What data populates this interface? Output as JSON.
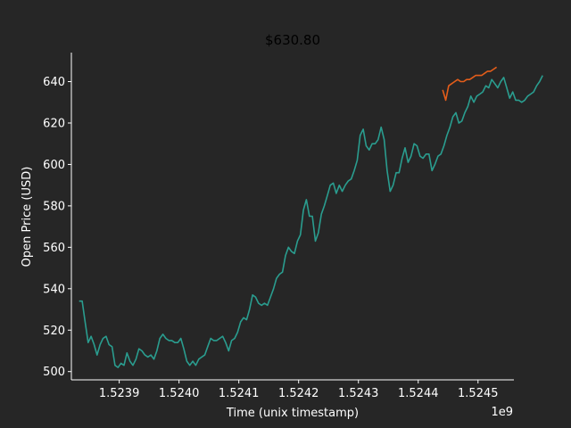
{
  "chart_data": {
    "type": "line",
    "title": "$630.80",
    "xlabel": "Time (unix timestamp)",
    "ylabel": "Open Price (USD)",
    "x_offset_label": "1e9",
    "xlim": [
      1.52382,
      1.52456
    ],
    "ylim": [
      496,
      654
    ],
    "x_ticks": [
      1.5239,
      1.524,
      1.5241,
      1.5242,
      1.5243,
      1.5244,
      1.5245
    ],
    "x_tick_labels": [
      "1.5239",
      "1.5240",
      "1.5241",
      "1.5242",
      "1.5243",
      "1.5244",
      "1.5245"
    ],
    "y_ticks": [
      500,
      520,
      540,
      560,
      580,
      600,
      620,
      640
    ],
    "y_tick_labels": [
      "500",
      "520",
      "540",
      "560",
      "580",
      "600",
      "620",
      "640"
    ],
    "grid": false,
    "series": [
      {
        "color": "#2a9d8f",
        "x": [
          1.523833,
          1.523838,
          1.523843,
          1.523848,
          1.523853,
          1.523858,
          1.523863,
          1.523868,
          1.523873,
          1.523878,
          1.523883,
          1.523888,
          1.523893,
          1.523898,
          1.523903,
          1.523908,
          1.523913,
          1.523918,
          1.523923,
          1.523928,
          1.523933,
          1.523938,
          1.523943,
          1.523948,
          1.523953,
          1.523958,
          1.523963,
          1.523968,
          1.523973,
          1.523978,
          1.523983,
          1.523988,
          1.523993,
          1.523998,
          1.524003,
          1.524008,
          1.524013,
          1.524018,
          1.524023,
          1.524028,
          1.524033,
          1.524038,
          1.524043,
          1.524048,
          1.524053,
          1.524058,
          1.524063,
          1.524068,
          1.524073,
          1.524078,
          1.524083,
          1.524088,
          1.524093,
          1.524098,
          1.524103,
          1.524108,
          1.524113,
          1.524118,
          1.524123,
          1.524128,
          1.524133,
          1.524138,
          1.524143,
          1.524148,
          1.524153,
          1.524158,
          1.524163,
          1.524168,
          1.524173,
          1.524178,
          1.524183,
          1.524188,
          1.524193,
          1.524198,
          1.524203,
          1.524208,
          1.524213,
          1.524218,
          1.524223,
          1.524228,
          1.524233,
          1.524238,
          1.524243,
          1.524248,
          1.524253,
          1.524258,
          1.524263,
          1.524268,
          1.524273,
          1.524278,
          1.524283,
          1.524288,
          1.524293,
          1.524298,
          1.524303,
          1.524308,
          1.524313,
          1.524318,
          1.524323,
          1.524328,
          1.524333,
          1.524338,
          1.524343,
          1.524348,
          1.524353,
          1.524358,
          1.524363,
          1.524368,
          1.524373,
          1.524378,
          1.524383,
          1.524388,
          1.524393,
          1.524398,
          1.524403,
          1.524408,
          1.524413,
          1.524418,
          1.524423,
          1.524428,
          1.524433,
          1.524438
        ],
        "y": [
          534,
          534,
          524,
          514,
          517,
          513,
          508,
          513,
          516,
          517,
          513,
          512,
          503,
          502,
          504,
          503,
          509,
          505,
          503,
          506,
          511,
          510,
          508,
          507,
          508,
          506,
          510,
          516,
          518,
          516,
          515,
          515,
          514,
          514,
          516,
          511,
          505,
          503,
          505,
          503,
          506,
          507,
          508,
          512,
          516,
          515,
          515,
          516,
          517,
          514,
          510,
          515,
          516,
          519,
          524,
          526,
          525,
          530,
          537,
          536,
          533,
          532,
          533,
          532,
          536,
          540,
          545,
          547,
          548,
          556,
          560,
          558,
          557,
          563,
          566,
          578,
          583,
          575,
          575,
          563,
          567,
          576,
          580,
          585,
          590,
          591,
          586,
          590,
          587,
          590,
          592,
          593,
          597,
          602,
          614,
          617,
          609,
          607,
          610,
          610,
          612,
          618,
          612,
          597,
          587,
          590,
          596,
          596,
          603,
          608,
          601,
          604,
          610,
          609,
          604,
          603,
          605,
          605,
          597,
          600,
          604,
          605
        ],
        "_cont_x": [
          1.524443,
          1.524448,
          1.524453,
          1.524458,
          1.524463,
          1.524468,
          1.524473,
          1.524478,
          1.524483,
          1.524488,
          1.524493,
          1.524498,
          1.524503,
          1.524508,
          1.524513,
          1.524518,
          1.524523,
          1.524528,
          1.524533,
          1.524538,
          1.524543,
          1.524548,
          1.524553,
          1.524558,
          1.524563,
          1.524568,
          1.524573,
          1.524578,
          1.524583,
          1.524588,
          1.524593,
          1.524598,
          1.524603,
          1.524608
        ],
        "_cont_y": [
          609,
          614,
          618,
          623,
          625,
          620,
          621,
          625,
          628,
          633,
          630,
          633,
          634,
          635,
          638,
          637,
          641,
          639,
          637,
          640,
          642,
          637,
          632,
          635,
          631,
          631,
          630,
          631,
          633,
          634,
          635,
          638,
          640,
          643
        ]
      },
      {
        "color": "#e35d1a",
        "x": [
          1.524441,
          1.524446,
          1.524451,
          1.524456,
          1.524461,
          1.524466,
          1.524471,
          1.524476,
          1.524481,
          1.524486,
          1.524491,
          1.524496,
          1.524501,
          1.524506,
          1.524511,
          1.524516,
          1.524521,
          1.524526,
          1.524531
        ],
        "y": [
          636,
          631,
          638,
          639,
          640,
          641,
          640,
          640,
          641,
          641,
          642,
          643,
          643,
          643,
          644,
          645,
          645,
          646,
          647
        ]
      }
    ]
  }
}
